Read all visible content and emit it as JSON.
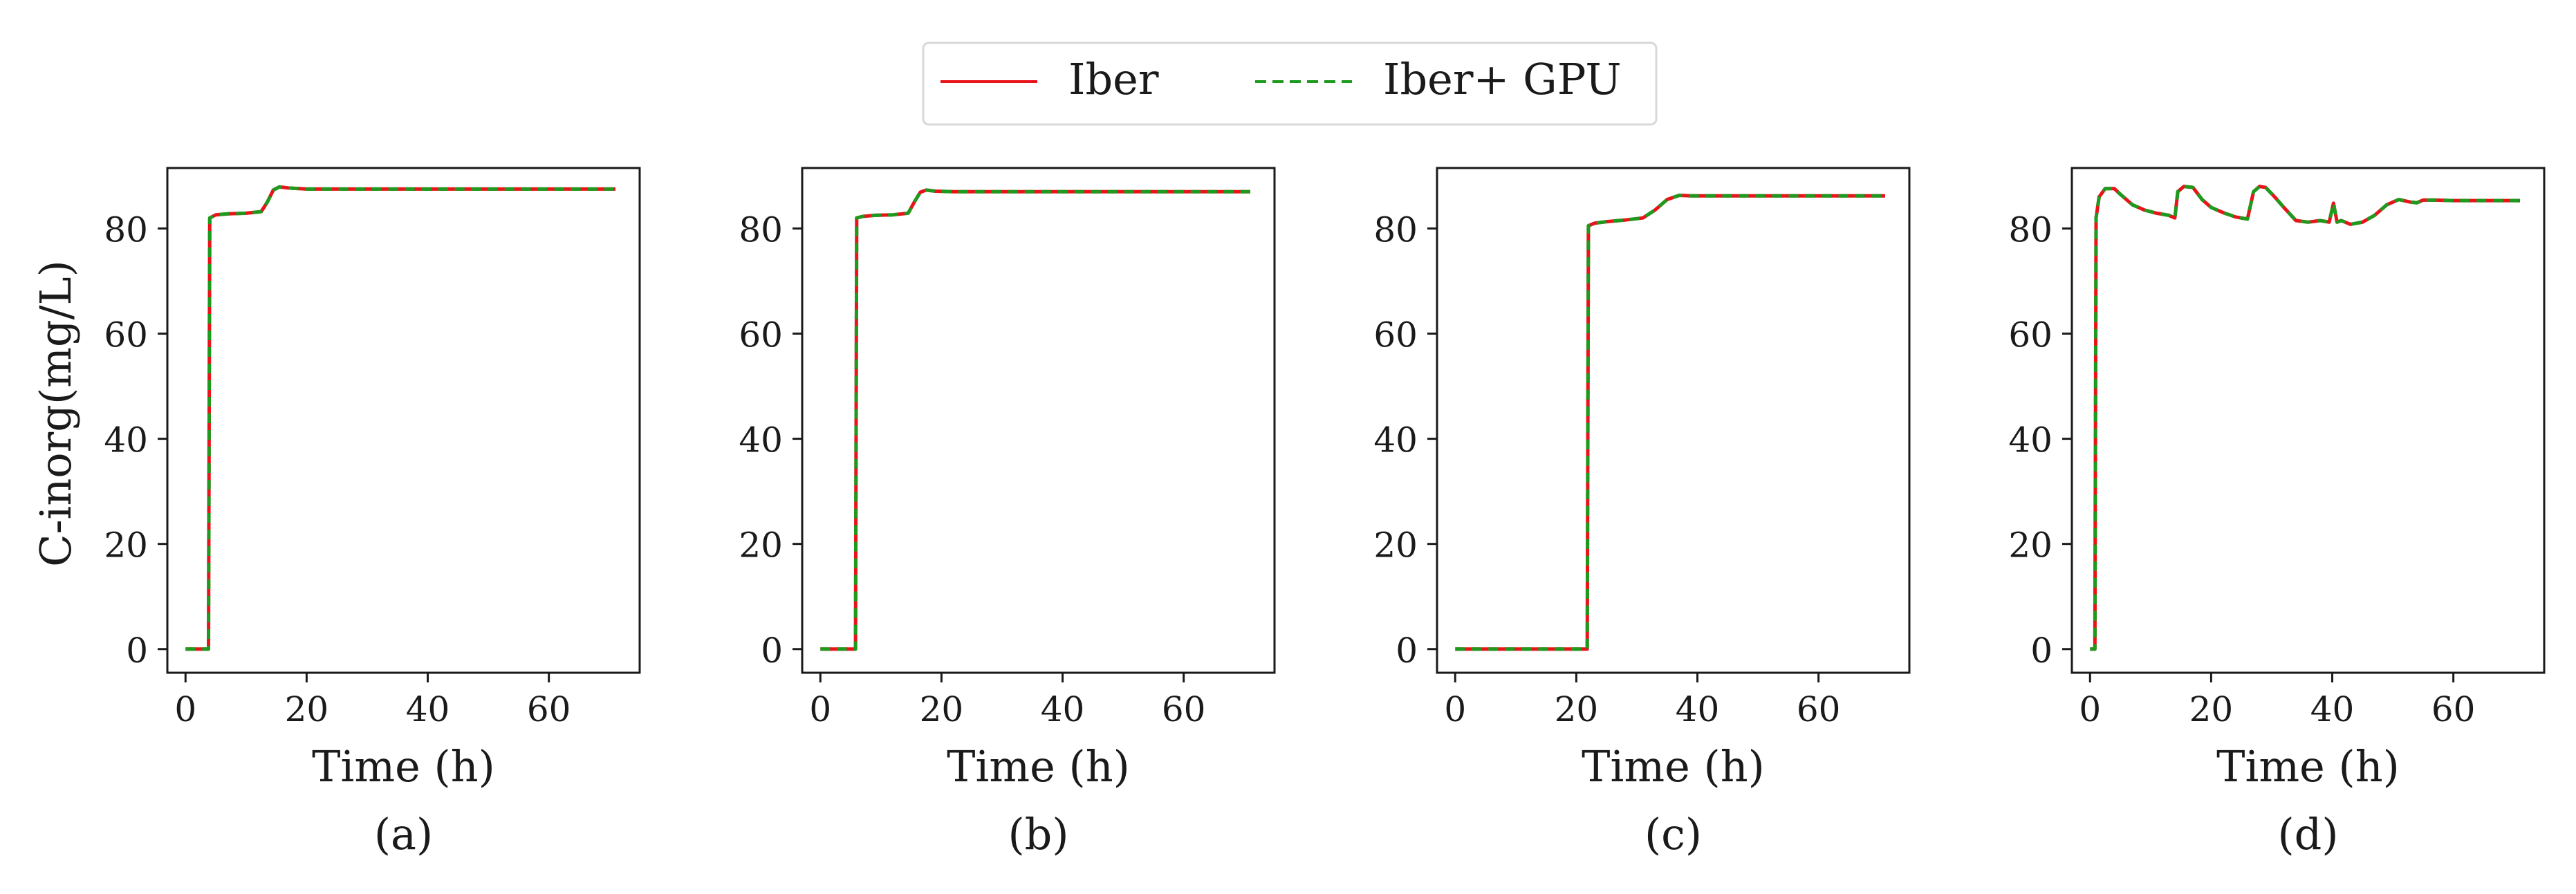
{
  "colors": {
    "series_iber": "#e8141c",
    "series_gpu": "#1e9a1e",
    "axis": "#1a1a1a",
    "background": "#ffffff"
  },
  "legend": {
    "placement": "top-center",
    "entries": [
      "Iber",
      "Iber+ GPU"
    ]
  },
  "shared": {
    "ylabel": "C-inorg(mg/L)",
    "xlabel": "Time (h)"
  },
  "chart_data": [
    {
      "type": "line",
      "panel_label": "(a)",
      "xlabel": "Time (h)",
      "ylabel": "C-inorg(mg/L)",
      "xlim": [
        -3,
        75
      ],
      "ylim": [
        -4.5,
        91.5
      ],
      "xticks": [
        0,
        20,
        40,
        60
      ],
      "yticks": [
        0,
        20,
        40,
        60,
        80
      ],
      "series": [
        {
          "name": "Iber",
          "x": [
            0,
            3.8,
            4.0,
            5,
            7,
            10,
            12.5,
            13.5,
            14.5,
            15.5,
            17,
            20,
            30,
            50,
            71
          ],
          "y": [
            0,
            0,
            82,
            82.6,
            82.8,
            82.9,
            83.2,
            85,
            87.3,
            87.9,
            87.7,
            87.5,
            87.5,
            87.5,
            87.5
          ]
        },
        {
          "name": "Iber+ GPU",
          "x": [
            0,
            3.8,
            4.0,
            5,
            7,
            10,
            12.5,
            13.5,
            14.5,
            15.5,
            17,
            20,
            30,
            50,
            71
          ],
          "y": [
            0,
            0,
            82,
            82.6,
            82.8,
            82.9,
            83.2,
            85,
            87.3,
            87.9,
            87.7,
            87.5,
            87.5,
            87.5,
            87.5
          ]
        }
      ]
    },
    {
      "type": "line",
      "panel_label": "(b)",
      "xlabel": "Time (h)",
      "ylabel": "",
      "xlim": [
        -3,
        75
      ],
      "ylim": [
        -4.5,
        91.5
      ],
      "xticks": [
        0,
        20,
        40,
        60
      ],
      "yticks": [
        0,
        20,
        40,
        60,
        80
      ],
      "series": [
        {
          "name": "Iber",
          "x": [
            0,
            5.8,
            6.0,
            7,
            9,
            12,
            14.5,
            15.5,
            16.5,
            17.5,
            19,
            22,
            30,
            50,
            71
          ],
          "y": [
            0,
            0,
            82,
            82.3,
            82.5,
            82.6,
            82.9,
            85,
            86.9,
            87.3,
            87.1,
            87,
            87,
            87,
            87
          ]
        },
        {
          "name": "Iber+ GPU",
          "x": [
            0,
            5.8,
            6.0,
            7,
            9,
            12,
            14.5,
            15.5,
            16.5,
            17.5,
            19,
            22,
            30,
            50,
            71
          ],
          "y": [
            0,
            0,
            82,
            82.3,
            82.5,
            82.6,
            82.9,
            85,
            86.9,
            87.3,
            87.1,
            87,
            87,
            87,
            87
          ]
        }
      ]
    },
    {
      "type": "line",
      "panel_label": "(c)",
      "xlabel": "Time (h)",
      "ylabel": "",
      "xlim": [
        -3,
        75
      ],
      "ylim": [
        -4.5,
        91.5
      ],
      "xticks": [
        0,
        20,
        40,
        60
      ],
      "yticks": [
        0,
        20,
        40,
        60,
        80
      ],
      "series": [
        {
          "name": "Iber",
          "x": [
            0,
            21.8,
            22.0,
            23,
            25,
            28,
            31,
            33,
            35,
            37,
            39,
            45,
            55,
            71
          ],
          "y": [
            0,
            0,
            80.5,
            81,
            81.3,
            81.6,
            82,
            83.5,
            85.5,
            86.3,
            86.2,
            86.2,
            86.2,
            86.2
          ]
        },
        {
          "name": "Iber+ GPU",
          "x": [
            0,
            21.8,
            22.0,
            23,
            25,
            28,
            31,
            33,
            35,
            37,
            39,
            45,
            55,
            71
          ],
          "y": [
            0,
            0,
            80.5,
            81,
            81.3,
            81.6,
            82,
            83.5,
            85.5,
            86.3,
            86.2,
            86.2,
            86.2,
            86.2
          ]
        }
      ]
    },
    {
      "type": "line",
      "panel_label": "(d)",
      "xlabel": "Time (h)",
      "ylabel": "",
      "xlim": [
        -3,
        75
      ],
      "ylim": [
        -4.5,
        91.5
      ],
      "xticks": [
        0,
        20,
        40,
        60
      ],
      "yticks": [
        0,
        20,
        40,
        60,
        80
      ],
      "series": [
        {
          "name": "Iber",
          "x": [
            0,
            0.8,
            1.0,
            1.5,
            2.5,
            4,
            5,
            7,
            9,
            11,
            13,
            14,
            14.5,
            15.5,
            17,
            18.5,
            20,
            22,
            24,
            26,
            27,
            28,
            29,
            30.5,
            32,
            34,
            36,
            38,
            39.5,
            40.2,
            40.8,
            41.5,
            43,
            45,
            47,
            49,
            51,
            53,
            54,
            55,
            57,
            60,
            65,
            71
          ],
          "y": [
            0,
            0,
            82,
            86,
            87.6,
            87.6,
            86.5,
            84.5,
            83.5,
            82.9,
            82.5,
            82,
            87,
            88,
            87.8,
            85.5,
            84,
            83,
            82.2,
            81.8,
            87,
            88,
            87.8,
            86,
            84,
            81.5,
            81.2,
            81.5,
            81.2,
            84.8,
            81.2,
            81.5,
            80.8,
            81.2,
            82.5,
            84.5,
            85.5,
            85,
            84.9,
            85.4,
            85.4,
            85.3,
            85.3,
            85.3
          ]
        },
        {
          "name": "Iber+ GPU",
          "x": [
            0,
            0.8,
            1.0,
            1.5,
            2.5,
            4,
            5,
            7,
            9,
            11,
            13,
            14,
            14.5,
            15.5,
            17,
            18.5,
            20,
            22,
            24,
            26,
            27,
            28,
            29,
            30.5,
            32,
            34,
            36,
            38,
            39.5,
            40.2,
            40.8,
            41.5,
            43,
            45,
            47,
            49,
            51,
            53,
            54,
            55,
            57,
            60,
            65,
            71
          ],
          "y": [
            0,
            0,
            82,
            86,
            87.6,
            87.6,
            86.5,
            84.5,
            83.5,
            82.9,
            82.5,
            82,
            87,
            88,
            87.8,
            85.5,
            84,
            83,
            82.2,
            81.8,
            87,
            88,
            87.8,
            86,
            84,
            81.5,
            81.2,
            81.5,
            81.2,
            84.8,
            81.2,
            81.5,
            80.8,
            81.2,
            82.5,
            84.5,
            85.5,
            85,
            84.9,
            85.4,
            85.4,
            85.3,
            85.3,
            85.3
          ]
        }
      ]
    }
  ]
}
